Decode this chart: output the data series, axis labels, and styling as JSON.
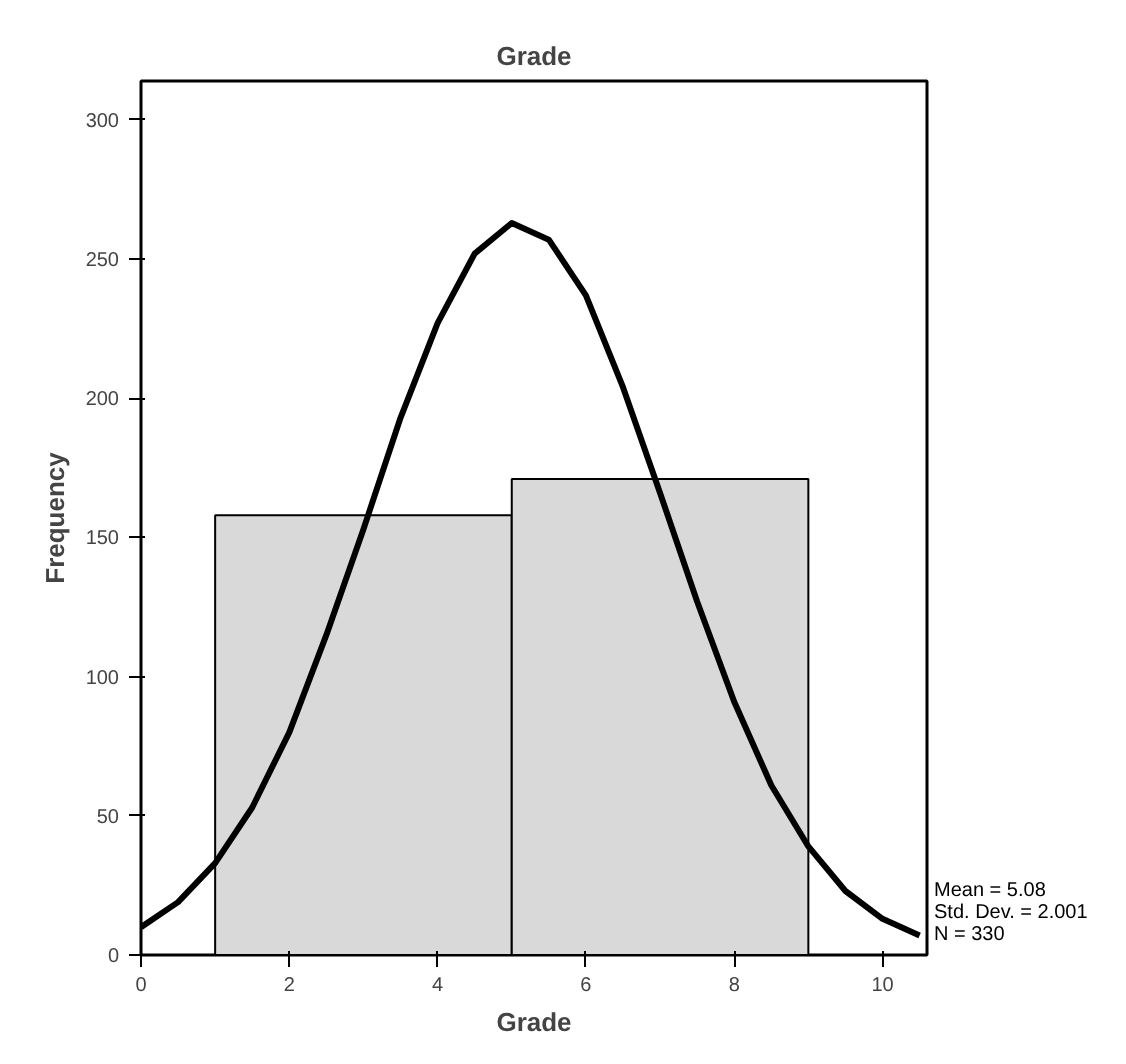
{
  "chart_data": {
    "type": "histogram",
    "title": "Grade",
    "xlabel": "Grade",
    "ylabel": "Frequency",
    "xlim": [
      0,
      10.6
    ],
    "ylim": [
      0,
      314
    ],
    "xticks": [
      0,
      2,
      4,
      6,
      8,
      10
    ],
    "yticks": [
      0,
      50,
      100,
      150,
      200,
      250,
      300
    ],
    "grid": false,
    "series": [
      {
        "type": "histogram",
        "bins": [
          1,
          5,
          9
        ],
        "values": [
          158,
          171
        ],
        "color": "#d9d9d9"
      },
      {
        "type": "line",
        "color": "#000000",
        "x": [
          0,
          0.5,
          1,
          1.5,
          2,
          2.5,
          3,
          3.5,
          4,
          4.5,
          5,
          5.5,
          6,
          6.5,
          7,
          7.5,
          8,
          8.5,
          9,
          9.5,
          10,
          10.5
        ],
        "values": [
          10,
          19,
          33,
          53,
          80,
          115,
          153,
          193,
          227,
          252,
          263,
          257,
          237,
          204,
          166,
          127,
          91,
          61,
          39,
          23,
          13,
          7
        ]
      }
    ],
    "annotations": [
      "Mean = 5.08",
      "Std. Dev. = 2.001",
      "N = 330"
    ]
  }
}
